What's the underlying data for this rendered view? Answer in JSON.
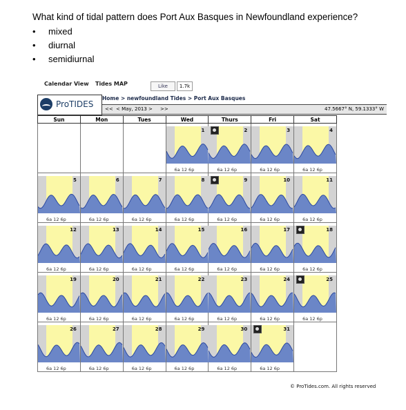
{
  "question": "What kind of tidal pattern does Port Aux Basques in Newfoundland experience?",
  "options": [
    "mixed",
    "diurnal",
    "semidiurnal"
  ],
  "widget": {
    "nav": {
      "calendar_view": "Calendar View",
      "tides_map": "Tides MAP"
    },
    "like": {
      "label": "Like",
      "count": "1.7k"
    },
    "logo": "ProTIDES",
    "breadcrumb": "Home > newfoundland Tides > Port Aux Basques",
    "month_nav": {
      "prev": "<<",
      "month": "< May, 2013 >",
      "next": ">>"
    },
    "coordinates": "47.5667° N, 59.1333° W",
    "weekdays": [
      "Sun",
      "Mon",
      "Tues",
      "Wed",
      "Thurs",
      "Fri",
      "Sat"
    ],
    "tick_labels": "6a  12  6p",
    "copyright": "© ProTides.com. All rights reserved",
    "colors": {
      "daylight": "#fbf8a6",
      "night": "#d3d3d3",
      "tide_fill": "#6b86c7",
      "tide_line": "#2d4aa0"
    }
  },
  "calendar": {
    "leading_blanks": 3,
    "days": [
      "1",
      "2",
      "3",
      "4",
      "5",
      "6",
      "7",
      "8",
      "9",
      "10",
      "11",
      "12",
      "13",
      "14",
      "15",
      "16",
      "17",
      "18",
      "19",
      "20",
      "21",
      "22",
      "23",
      "24",
      "25",
      "26",
      "27",
      "28",
      "29",
      "30",
      "31"
    ],
    "moon_phase_days": [
      "2",
      "9",
      "18",
      "25",
      "31"
    ]
  }
}
